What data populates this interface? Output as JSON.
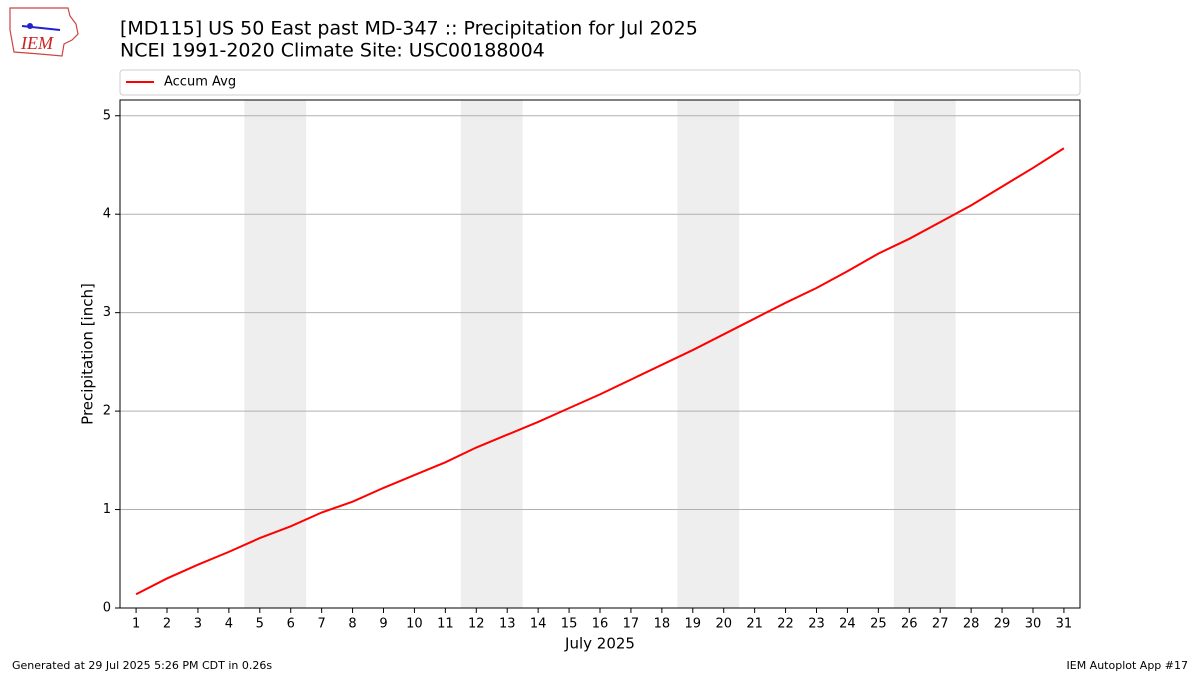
{
  "logo_text": "IEM",
  "chart_data": {
    "type": "line",
    "title": "[MD115] US 50 East past MD-347  :: Precipitation for Jul 2025",
    "subtitle": "NCEI 1991-2020 Climate Site: USC00188004",
    "x_label": "July 2025",
    "y_label": "Precipitation [inch]",
    "x": [
      1,
      2,
      3,
      4,
      5,
      6,
      7,
      8,
      9,
      10,
      11,
      12,
      13,
      14,
      15,
      16,
      17,
      18,
      19,
      20,
      21,
      22,
      23,
      24,
      25,
      26,
      27,
      28,
      29,
      30,
      31
    ],
    "series": [
      {
        "name": "Accum Avg",
        "color": "#ff0000",
        "values": [
          0.14,
          0.3,
          0.44,
          0.57,
          0.71,
          0.83,
          0.97,
          1.08,
          1.22,
          1.35,
          1.48,
          1.63,
          1.76,
          1.89,
          2.03,
          2.17,
          2.32,
          2.47,
          2.62,
          2.78,
          2.94,
          3.1,
          3.25,
          3.42,
          3.6,
          3.75,
          3.92,
          4.09,
          4.28,
          4.47,
          4.67
        ]
      }
    ],
    "shaded_x": [
      [
        4.5,
        6.5
      ],
      [
        11.5,
        13.5
      ],
      [
        18.5,
        20.5
      ],
      [
        25.5,
        27.5
      ]
    ],
    "shade_color": "#eeeeee",
    "xlim": [
      0.48,
      31.52
    ],
    "ylim": [
      0,
      5.16
    ],
    "xticks": [
      1,
      2,
      3,
      4,
      5,
      6,
      7,
      8,
      9,
      10,
      11,
      12,
      13,
      14,
      15,
      16,
      17,
      18,
      19,
      20,
      21,
      22,
      23,
      24,
      25,
      26,
      27,
      28,
      29,
      30,
      31
    ],
    "yticks": [
      0,
      1,
      2,
      3,
      4,
      5
    ],
    "grid": true,
    "footer_left": "Generated at 29 Jul 2025 5:26 PM CDT in 0.26s",
    "footer_right": "IEM Autoplot App #17"
  }
}
